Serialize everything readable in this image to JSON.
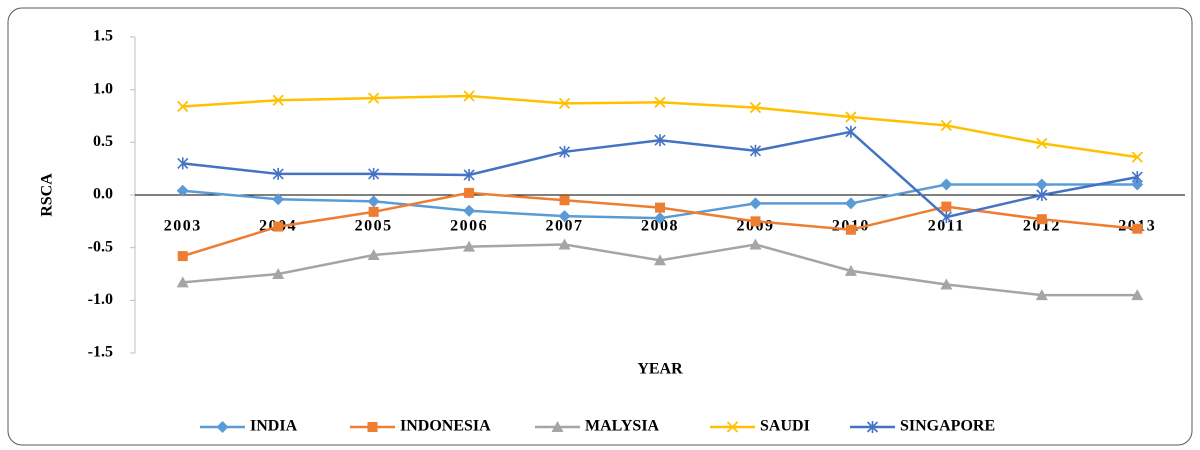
{
  "chart_data": {
    "type": "line",
    "y_label": "RSCA",
    "x_label": "YEAR",
    "categories": [
      "2003",
      "2004",
      "2005",
      "2006",
      "2007",
      "2008",
      "2009",
      "2010",
      "2011",
      "2012",
      "2013"
    ],
    "ylim": [
      -1.5,
      1.5
    ],
    "yticks": [
      1.5,
      {
        "value": 1.0,
        "label": "1.0"
      },
      0.5,
      {
        "value": 0,
        "label": "0.0"
      },
      -0.5,
      {
        "value": -1.0,
        "label": "-1.0"
      },
      -1.5
    ],
    "legend": "bottom",
    "series": [
      {
        "name": "INDIA",
        "color": "#5b9bd5",
        "marker": "diamond",
        "values": [
          0.04,
          -0.04,
          -0.06,
          -0.15,
          -0.2,
          -0.22,
          -0.08,
          -0.08,
          0.1,
          0.1,
          0.1
        ]
      },
      {
        "name": "INDONESIA",
        "color": "#ed7d31",
        "marker": "square",
        "values": [
          -0.58,
          -0.3,
          -0.16,
          0.02,
          -0.05,
          -0.12,
          -0.25,
          -0.33,
          -0.11,
          -0.23,
          -0.32
        ]
      },
      {
        "name": "MALYSIA",
        "color": "#a5a5a5",
        "marker": "triangle",
        "values": [
          -0.83,
          -0.75,
          -0.57,
          -0.49,
          -0.47,
          -0.62,
          -0.47,
          -0.72,
          -0.85,
          -0.95,
          -0.95
        ]
      },
      {
        "name": "SAUDI",
        "color": "#ffc000",
        "marker": "x",
        "values": [
          0.84,
          0.9,
          0.92,
          0.94,
          0.87,
          0.88,
          0.83,
          0.74,
          0.66,
          0.49,
          0.36
        ]
      },
      {
        "name": "SINGAPORE",
        "color": "#4472c4",
        "marker": "star",
        "values": [
          0.3,
          0.2,
          0.2,
          0.19,
          0.41,
          0.52,
          0.42,
          0.6,
          -0.21,
          0.0,
          0.17
        ]
      }
    ]
  }
}
